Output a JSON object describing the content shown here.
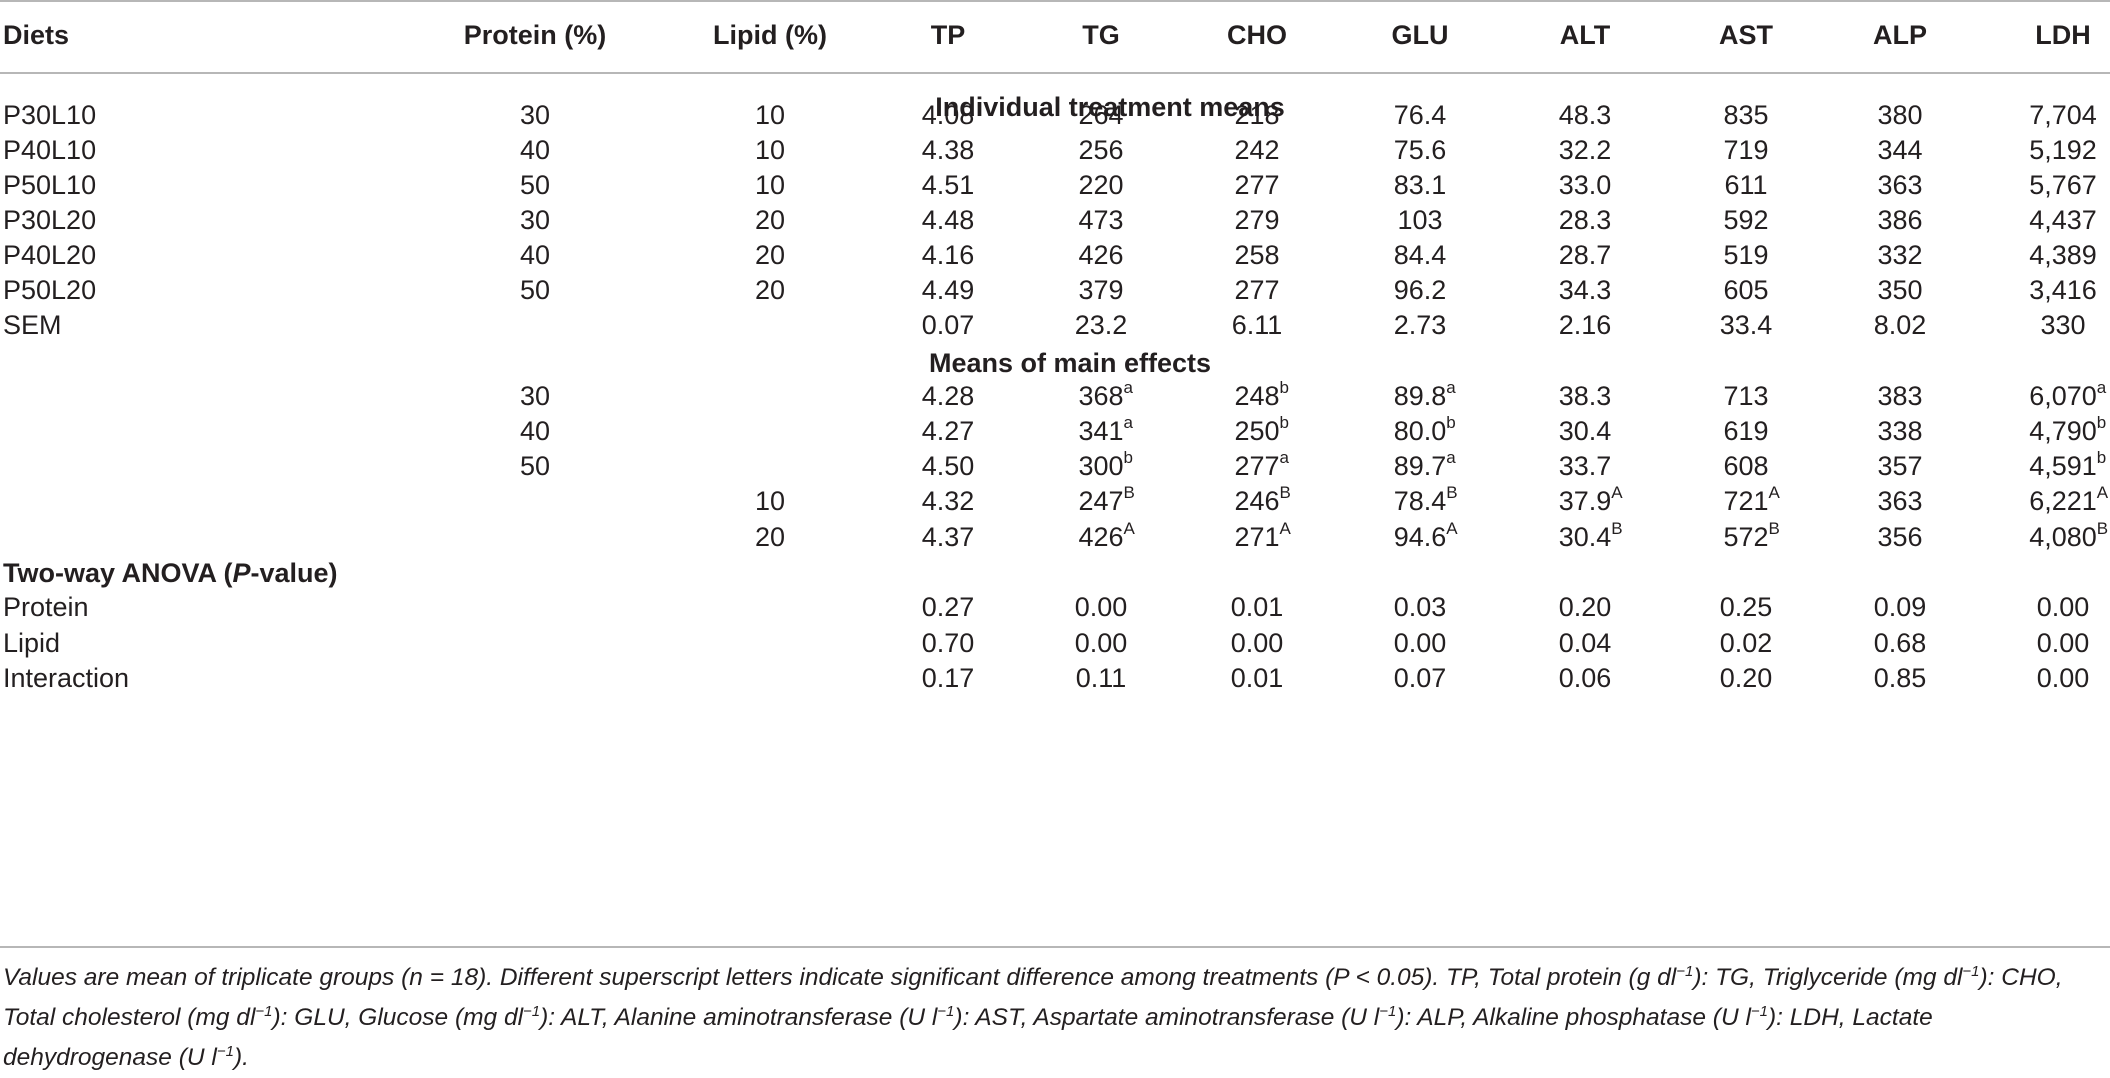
{
  "table": {
    "headers": [
      "Diets",
      "Protein (%)",
      "Lipid (%)",
      "TP",
      "TG",
      "CHO",
      "GLU",
      "ALT",
      "AST",
      "ALP",
      "LDH"
    ],
    "sections": {
      "individual": "Individual treatment means",
      "main_effects": "Means of main effects"
    },
    "individual_rows": [
      {
        "diet": "P30L10",
        "protein": "30",
        "lipid": "10",
        "values": [
          "4.08",
          "264",
          "218",
          "76.4",
          "48.3",
          "835",
          "380",
          "7,704"
        ]
      },
      {
        "diet": "P40L10",
        "protein": "40",
        "lipid": "10",
        "values": [
          "4.38",
          "256",
          "242",
          "75.6",
          "32.2",
          "719",
          "344",
          "5,192"
        ]
      },
      {
        "diet": "P50L10",
        "protein": "50",
        "lipid": "10",
        "values": [
          "4.51",
          "220",
          "277",
          "83.1",
          "33.0",
          "611",
          "363",
          "5,767"
        ]
      },
      {
        "diet": "P30L20",
        "protein": "30",
        "lipid": "20",
        "values": [
          "4.48",
          "473",
          "279",
          "103",
          "28.3",
          "592",
          "386",
          "4,437"
        ]
      },
      {
        "diet": "P40L20",
        "protein": "40",
        "lipid": "20",
        "values": [
          "4.16",
          "426",
          "258",
          "84.4",
          "28.7",
          "519",
          "332",
          "4,389"
        ]
      },
      {
        "diet": "P50L20",
        "protein": "50",
        "lipid": "20",
        "values": [
          "4.49",
          "379",
          "277",
          "96.2",
          "34.3",
          "605",
          "350",
          "3,416"
        ]
      },
      {
        "diet": "SEM",
        "protein": "",
        "lipid": "",
        "values": [
          "0.07",
          "23.2",
          "6.11",
          "2.73",
          "2.16",
          "33.4",
          "8.02",
          "330"
        ]
      }
    ],
    "main_effect_rows": [
      {
        "protein": "30",
        "lipid": "",
        "values": [
          [
            "4.28",
            ""
          ],
          [
            "368",
            "a"
          ],
          [
            "248",
            "b"
          ],
          [
            "89.8",
            "a"
          ],
          [
            "38.3",
            ""
          ],
          [
            "713",
            ""
          ],
          [
            "383",
            ""
          ],
          [
            "6,070",
            "a"
          ]
        ]
      },
      {
        "protein": "40",
        "lipid": "",
        "values": [
          [
            "4.27",
            ""
          ],
          [
            "341",
            "a"
          ],
          [
            "250",
            "b"
          ],
          [
            "80.0",
            "b"
          ],
          [
            "30.4",
            ""
          ],
          [
            "619",
            ""
          ],
          [
            "338",
            ""
          ],
          [
            "4,790",
            "b"
          ]
        ]
      },
      {
        "protein": "50",
        "lipid": "",
        "values": [
          [
            "4.50",
            ""
          ],
          [
            "300",
            "b"
          ],
          [
            "277",
            "a"
          ],
          [
            "89.7",
            "a"
          ],
          [
            "33.7",
            ""
          ],
          [
            "608",
            ""
          ],
          [
            "357",
            ""
          ],
          [
            "4,591",
            "b"
          ]
        ]
      },
      {
        "protein": "",
        "lipid": "10",
        "values": [
          [
            "4.32",
            ""
          ],
          [
            "247",
            "B"
          ],
          [
            "246",
            "B"
          ],
          [
            "78.4",
            "B"
          ],
          [
            "37.9",
            "A"
          ],
          [
            "721",
            "A"
          ],
          [
            "363",
            ""
          ],
          [
            "6,221",
            "A"
          ]
        ]
      },
      {
        "protein": "",
        "lipid": "20",
        "values": [
          [
            "4.37",
            ""
          ],
          [
            "426",
            "A"
          ],
          [
            "271",
            "A"
          ],
          [
            "94.6",
            "A"
          ],
          [
            "30.4",
            "B"
          ],
          [
            "572",
            "B"
          ],
          [
            "356",
            ""
          ],
          [
            "4,080",
            "B"
          ]
        ]
      }
    ],
    "anova_title_pre": "Two-way ANOVA (",
    "anova_title_italic": "P",
    "anova_title_post": "-value)",
    "anova_rows": [
      {
        "label": "Protein",
        "values": [
          "0.27",
          "0.00",
          "0.01",
          "0.03",
          "0.20",
          "0.25",
          "0.09",
          "0.00"
        ]
      },
      {
        "label": "Lipid",
        "values": [
          "0.70",
          "0.00",
          "0.00",
          "0.00",
          "0.04",
          "0.02",
          "0.68",
          "0.00"
        ]
      },
      {
        "label": "Interaction",
        "values": [
          "0.17",
          "0.11",
          "0.01",
          "0.07",
          "0.06",
          "0.20",
          "0.85",
          "0.00"
        ]
      }
    ]
  },
  "footnote": {
    "segments": [
      "Values are mean of triplicate groups (n = 18). Different superscript letters indicate significant difference among treatments (P < 0.05). TP, Total protein (g dl",
      "−1",
      "): TG, Triglyceride (mg dl",
      "−1",
      "): CHO, Total cholesterol (mg dl",
      "−1",
      "): GLU, Glucose (mg dl",
      "−1",
      "): ALT, Alanine aminotransferase (U l",
      "−1",
      "): AST, Aspartate aminotransferase (U l",
      "−1",
      "): ALP, Alkaline phosphatase (U l",
      "−1",
      "): LDH, Lactate dehydrogenase (U l",
      "−1",
      ")."
    ]
  }
}
